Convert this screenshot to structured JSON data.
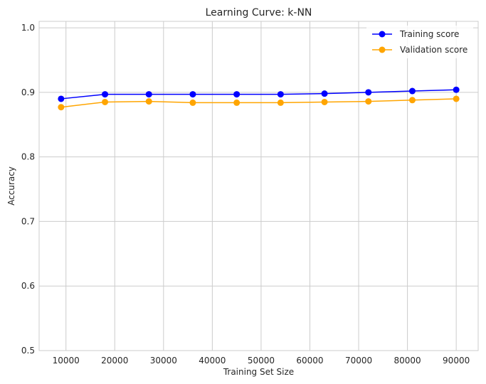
{
  "chart_data": {
    "type": "line",
    "title": "Learning Curve: k-NN",
    "xlabel": "Training Set Size",
    "ylabel": "Accuracy",
    "xlim": [
      4500,
      94500
    ],
    "ylim": [
      0.5,
      1.01
    ],
    "xticks": [
      10000,
      20000,
      30000,
      40000,
      50000,
      60000,
      70000,
      80000,
      90000
    ],
    "yticks": [
      0.5,
      0.6,
      0.7,
      0.8,
      0.9,
      1.0
    ],
    "xtick_labels": [
      "10000",
      "20000",
      "30000",
      "40000",
      "50000",
      "60000",
      "70000",
      "80000",
      "90000"
    ],
    "ytick_labels": [
      "0.5",
      "0.6",
      "0.7",
      "0.8",
      "0.9",
      "1.0"
    ],
    "grid": true,
    "legend_position": "top-right",
    "x": [
      9000,
      18000,
      27000,
      36000,
      45000,
      54000,
      63000,
      72000,
      81000,
      90000
    ],
    "series": [
      {
        "name": "Training score",
        "color": "#0000ff",
        "values": [
          0.89,
          0.897,
          0.897,
          0.897,
          0.897,
          0.897,
          0.898,
          0.9,
          0.902,
          0.904
        ]
      },
      {
        "name": "Validation score",
        "color": "#ffa500",
        "values": [
          0.877,
          0.885,
          0.886,
          0.884,
          0.884,
          0.884,
          0.885,
          0.886,
          0.888,
          0.89
        ]
      }
    ]
  }
}
